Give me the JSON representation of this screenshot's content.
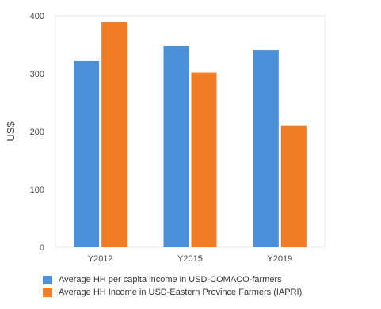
{
  "chart_data": {
    "type": "bar",
    "ylabel": "US$",
    "xlabel": "",
    "ylim": [
      0,
      400
    ],
    "yticks": [
      0,
      100,
      200,
      300,
      400
    ],
    "categories": [
      "Y2012",
      "Y2015",
      "Y2019"
    ],
    "series": [
      {
        "name": "Average HH  per capita  income in USD-COMACO-farmers",
        "color": "#4a90d9",
        "values": [
          322,
          348,
          341
        ]
      },
      {
        "name": "Average HH Income in USD-Eastern Province Farmers (IAPRI)",
        "color": "#f07d26",
        "values": [
          389,
          302,
          210
        ]
      }
    ],
    "grid": false,
    "legend_position": "bottom"
  }
}
